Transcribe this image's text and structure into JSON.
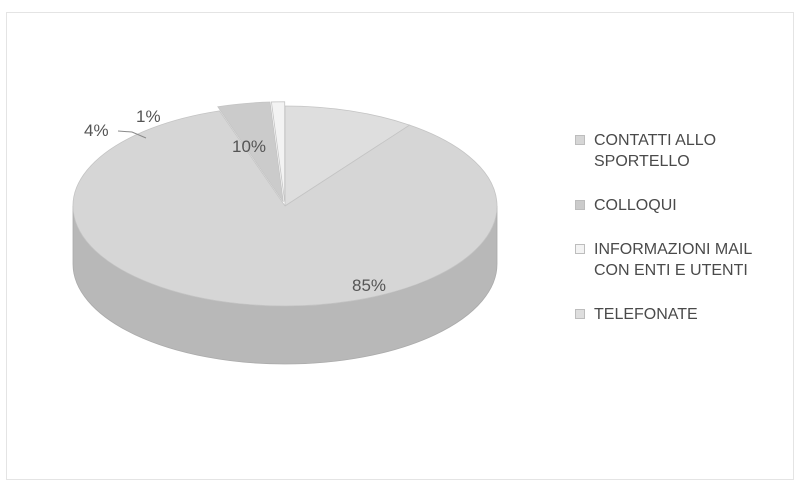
{
  "chart_data": {
    "type": "pie",
    "categories": [
      "CONTATTI ALLO SPORTELLO",
      "COLLOQUI",
      "INFORMAZIONI MAIL CON ENTI E UTENTI",
      "TELEFONATE"
    ],
    "values": [
      85,
      4,
      1,
      10
    ],
    "value_labels": [
      "85%",
      "4%",
      "1%",
      "10%"
    ],
    "colors": [
      "#d6d6d6",
      "#cbcbcb",
      "#f3f3f3",
      "#dedede"
    ],
    "style": "3d",
    "legend_position": "right",
    "title": ""
  }
}
